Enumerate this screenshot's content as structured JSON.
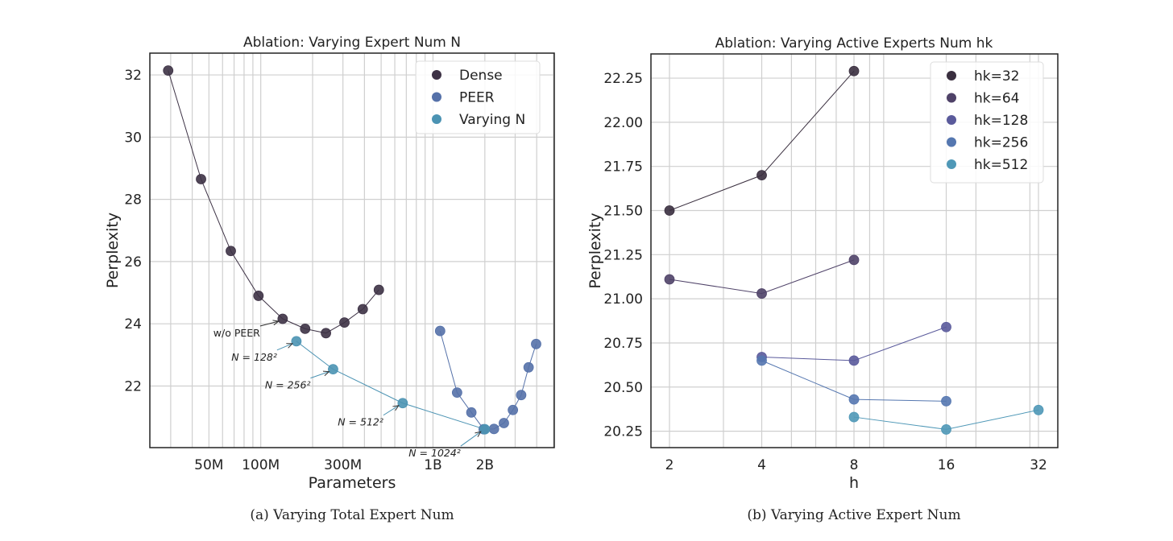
{
  "chart_data": [
    {
      "type": "scatter",
      "title": "Ablation: Varying Expert Num N",
      "xlabel": "Parameters",
      "ylabel": "Perplexity",
      "xscale": "log",
      "xlim": [
        22700000,
        5060000000
      ],
      "ylim": [
        20.02,
        32.7
      ],
      "grid": true,
      "legend_position": "top-right",
      "xticks": [
        {
          "value": 50000000,
          "label": "50M"
        },
        {
          "value": 100000000,
          "label": "100M"
        },
        {
          "value": 300000000,
          "label": "300M"
        },
        {
          "value": 1000000000,
          "label": "1B"
        },
        {
          "value": 2000000000,
          "label": "2B"
        }
      ],
      "yticks": [
        22,
        24,
        26,
        28,
        30,
        32
      ],
      "caption": "(a) Varying Total Expert Num",
      "series": [
        {
          "name": "Dense",
          "color": "#3d3245",
          "x": [
            29000000,
            45000000,
            67000000,
            97000000,
            134000000,
            181000000,
            239000000,
            306000000,
            391000000,
            485000000
          ],
          "y": [
            32.14,
            28.65,
            26.34,
            24.9,
            24.16,
            23.84,
            23.7,
            24.04,
            24.47,
            25.09
          ]
        },
        {
          "name": "PEER",
          "color": "#5571a9",
          "x": [
            1100000000,
            1380000000,
            1670000000,
            1970000000,
            2260000000,
            2580000000,
            2910000000,
            3250000000,
            3590000000,
            3970000000
          ],
          "y": [
            23.77,
            21.79,
            21.15,
            20.61,
            20.62,
            20.81,
            21.23,
            21.71,
            22.6,
            23.35
          ]
        },
        {
          "name": "Varying N",
          "color": "#4b93b3",
          "x": [
            161000000,
            263000000,
            667000000,
            2000000000
          ],
          "y": [
            23.44,
            22.54,
            21.45,
            20.61
          ]
        }
      ],
      "annotations": [
        {
          "text": "w/o PEER",
          "series": 0,
          "point": 4
        },
        {
          "text": "N = 128²",
          "series": 2,
          "point": 0
        },
        {
          "text": "N = 256²",
          "series": 2,
          "point": 1
        },
        {
          "text": "N = 512²",
          "series": 2,
          "point": 2
        },
        {
          "text": "N = 1024²",
          "series": 2,
          "point": 3
        }
      ]
    },
    {
      "type": "scatter",
      "title": "Ablation: Varying Active Experts Num hk",
      "xlabel": "h",
      "ylabel": "Perplexity",
      "xscale": "log2",
      "xlim": [
        1.74,
        37.0
      ],
      "ylim": [
        20.157,
        22.387
      ],
      "grid": true,
      "legend_position": "top-right",
      "xticks": [
        {
          "value": 2,
          "label": "2"
        },
        {
          "value": 4,
          "label": "4"
        },
        {
          "value": 8,
          "label": "8"
        },
        {
          "value": 16,
          "label": "16"
        },
        {
          "value": 32,
          "label": "32"
        }
      ],
      "yticks": [
        "20.25",
        "20.50",
        "20.75",
        "21.00",
        "21.25",
        "21.50",
        "21.75",
        "22.00",
        "22.25"
      ],
      "caption": "(b) Varying Active Expert Num",
      "series": [
        {
          "name": "hk=32",
          "color": "#3a2f3f",
          "x": [
            2,
            4,
            8
          ],
          "y": [
            21.5,
            21.7,
            22.29
          ]
        },
        {
          "name": "hk=64",
          "color": "#4f4268",
          "x": [
            2,
            4,
            8
          ],
          "y": [
            21.11,
            21.03,
            21.22
          ]
        },
        {
          "name": "hk=128",
          "color": "#5a5a9b",
          "x": [
            4,
            8,
            16
          ],
          "y": [
            20.67,
            20.65,
            20.84
          ]
        },
        {
          "name": "hk=256",
          "color": "#5577b0",
          "x": [
            4,
            8,
            16
          ],
          "y": [
            20.65,
            20.43,
            20.42
          ]
        },
        {
          "name": "hk=512",
          "color": "#4f98b7",
          "x": [
            8,
            16,
            32
          ],
          "y": [
            20.33,
            20.26,
            20.37
          ]
        }
      ]
    }
  ]
}
